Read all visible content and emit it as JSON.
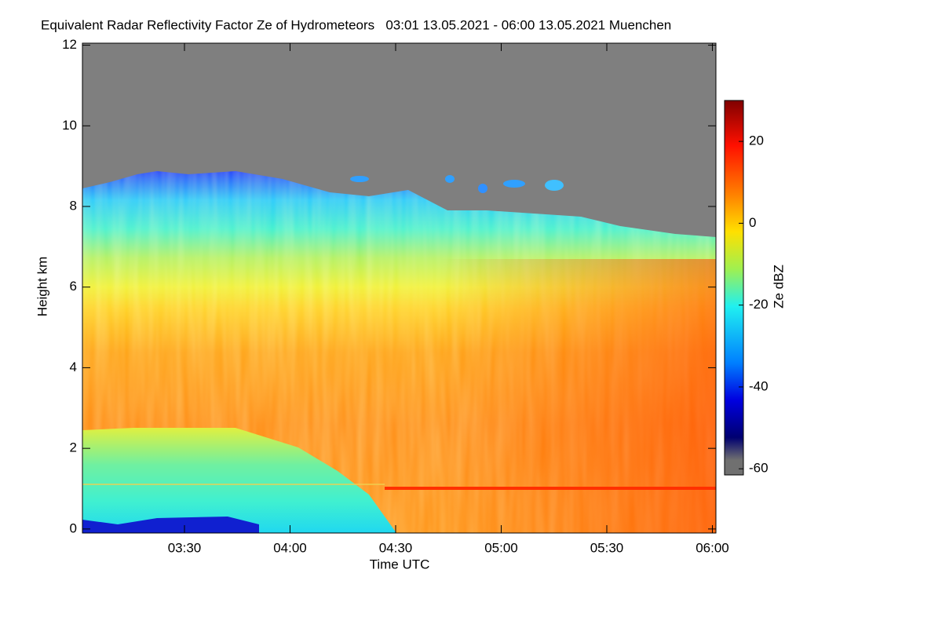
{
  "chart_data": {
    "type": "heatmap",
    "title": "Equivalent Radar Reflectivity Factor Ze of Hydrometeors   03:01 13.05.2021 - 06:00 13.05.2021 Muenchen",
    "x_label": "Time UTC",
    "y_label": "Height km",
    "xlim": [
      3.0167,
      6.0167
    ],
    "xticks": [
      {
        "value": 3.5,
        "label": "03:30"
      },
      {
        "value": 4.0,
        "label": "04:00"
      },
      {
        "value": 4.5,
        "label": "04:30"
      },
      {
        "value": 5.0,
        "label": "05:00"
      },
      {
        "value": 5.5,
        "label": "05:30"
      },
      {
        "value": 6.0,
        "label": "06:00"
      }
    ],
    "ylim": [
      -0.1,
      12.05
    ],
    "yticks": [
      0,
      2,
      4,
      6,
      8,
      10,
      12
    ],
    "colorbar": {
      "label": "Ze dBZ",
      "lim": [
        -61.5,
        30
      ],
      "ticks": [
        20,
        0,
        -20,
        -40,
        -60
      ]
    }
  }
}
